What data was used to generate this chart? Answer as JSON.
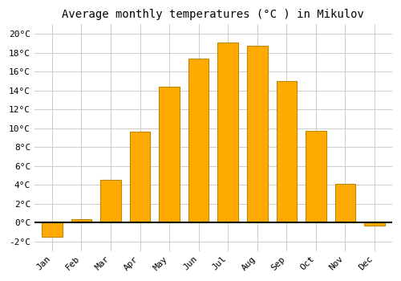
{
  "title": "Average monthly temperatures (°C ) in Mikulov",
  "months": [
    "Jan",
    "Feb",
    "Mar",
    "Apr",
    "May",
    "Jun",
    "Jul",
    "Aug",
    "Sep",
    "Oct",
    "Nov",
    "Dec"
  ],
  "values": [
    -1.5,
    0.4,
    4.5,
    9.6,
    14.4,
    17.4,
    19.1,
    18.7,
    15.0,
    9.7,
    4.1,
    -0.3
  ],
  "bar_color": "#FFAA00",
  "bar_edge_color": "#BB8800",
  "background_color": "#ffffff",
  "plot_bg_color": "#ffffff",
  "grid_color": "#cccccc",
  "ylim": [
    -3,
    21
  ],
  "yticks": [
    -2,
    0,
    2,
    4,
    6,
    8,
    10,
    12,
    14,
    16,
    18,
    20
  ],
  "ytick_labels": [
    "-2°C",
    "0°C",
    "2°C",
    "4°C",
    "6°C",
    "8°C",
    "10°C",
    "12°C",
    "14°C",
    "16°C",
    "18°C",
    "20°C"
  ],
  "zero_line_color": "#000000",
  "title_fontsize": 10,
  "tick_fontsize": 8,
  "font_family": "monospace",
  "bar_width": 0.7
}
